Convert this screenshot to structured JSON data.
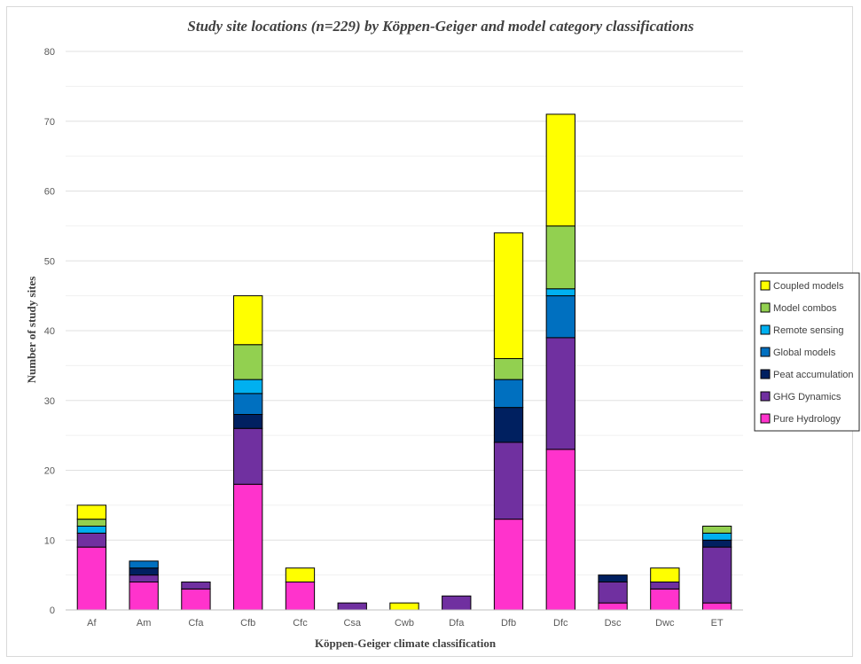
{
  "chart_data": {
    "type": "bar",
    "stacked": true,
    "title": "Study site locations (n=229) by Köppen-Geiger and model category classifications",
    "xlabel": "Köppen-Geiger climate classification",
    "ylabel": "Number of study sites",
    "ylim": [
      0,
      80
    ],
    "ytick_step": 10,
    "grid": true,
    "legend_position": "right",
    "categories": [
      "Af",
      "Am",
      "Cfa",
      "Cfb",
      "Cfc",
      "Csa",
      "Cwb",
      "Dfa",
      "Dfb",
      "Dfc",
      "Dsc",
      "Dwc",
      "ET"
    ],
    "series": [
      {
        "name": "Pure Hydrology",
        "color": "#ff33cc",
        "values": [
          9,
          4,
          3,
          18,
          4,
          0,
          0,
          0,
          13,
          23,
          1,
          3,
          1
        ]
      },
      {
        "name": "GHG Dynamics",
        "color": "#7030a0",
        "values": [
          2,
          1,
          1,
          8,
          0,
          1,
          0,
          2,
          11,
          16,
          3,
          1,
          8
        ]
      },
      {
        "name": "Peat accumulation",
        "color": "#002060",
        "values": [
          0,
          1,
          0,
          2,
          0,
          0,
          0,
          0,
          5,
          0,
          1,
          0,
          1
        ]
      },
      {
        "name": "Global models",
        "color": "#0070c0",
        "values": [
          0,
          1,
          0,
          3,
          0,
          0,
          0,
          0,
          4,
          6,
          0,
          0,
          0
        ]
      },
      {
        "name": "Remote sensing",
        "color": "#00b0f0",
        "values": [
          1,
          0,
          0,
          2,
          0,
          0,
          0,
          0,
          0,
          1,
          0,
          0,
          1
        ]
      },
      {
        "name": "Model combos",
        "color": "#92d050",
        "values": [
          1,
          0,
          0,
          5,
          0,
          0,
          0,
          0,
          3,
          9,
          0,
          0,
          1
        ]
      },
      {
        "name": "Coupled models",
        "color": "#ffff00",
        "values": [
          2,
          0,
          0,
          7,
          2,
          0,
          1,
          0,
          18,
          16,
          0,
          2,
          0
        ]
      }
    ],
    "legend_order": [
      "Coupled models",
      "Model combos",
      "Remote sensing",
      "Global models",
      "Peat accumulation",
      "GHG Dynamics",
      "Pure Hydrology"
    ]
  }
}
